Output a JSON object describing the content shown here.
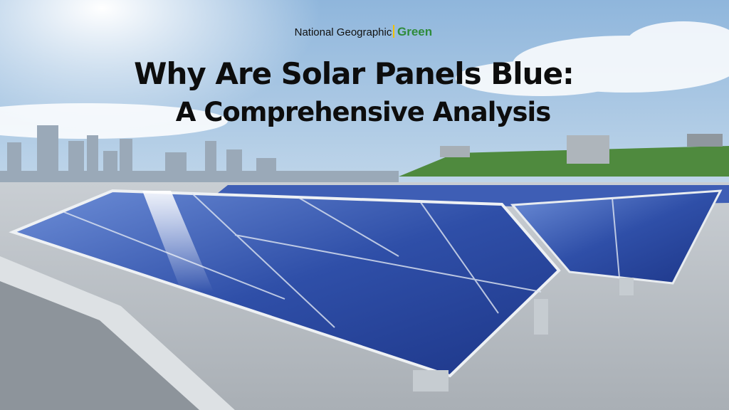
{
  "brand": {
    "name": "National Geographic",
    "tag": "Green"
  },
  "headline": {
    "line1": "Why Are Solar Panels Blue:",
    "line2": "A Comprehensive Analysis"
  }
}
